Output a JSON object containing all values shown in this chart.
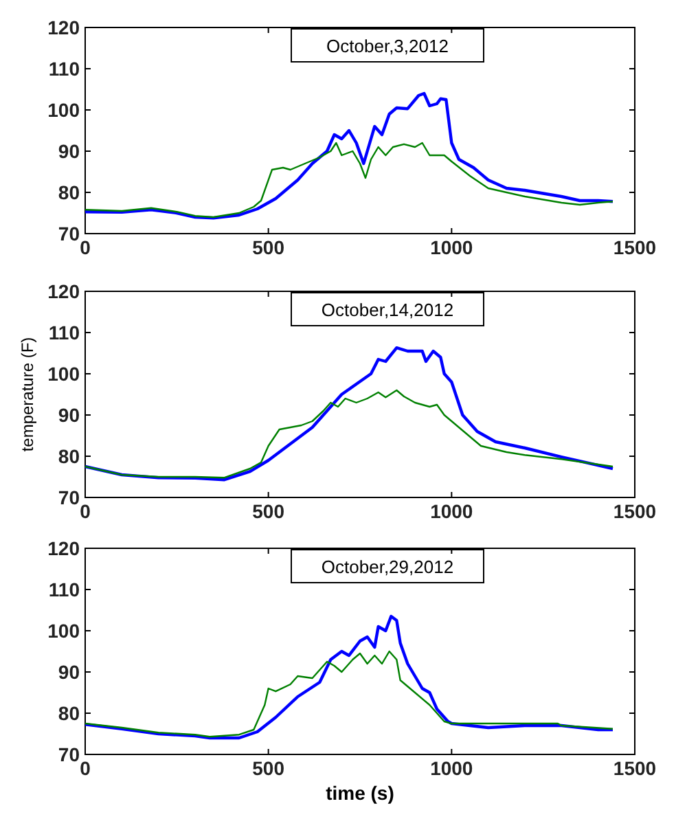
{
  "chart_data": [
    {
      "type": "line",
      "annotations": [
        "October,3,2012"
      ],
      "xlim": [
        0,
        1500
      ],
      "ylim": [
        70,
        120
      ],
      "xticks": [
        0,
        500,
        1000,
        1500
      ],
      "yticks": [
        70,
        80,
        90,
        100,
        110,
        120
      ],
      "series": [
        {
          "color": "#0000ff",
          "x": [
            0,
            100,
            180,
            250,
            300,
            350,
            420,
            470,
            520,
            580,
            620,
            660,
            680,
            700,
            720,
            740,
            760,
            780,
            790,
            810,
            830,
            850,
            880,
            910,
            925,
            940,
            960,
            970,
            985,
            1000,
            1020,
            1060,
            1100,
            1150,
            1200,
            1300,
            1350,
            1400,
            1440
          ],
          "values": [
            75.3,
            75.2,
            75.8,
            75,
            74,
            73.8,
            74.5,
            76,
            78.5,
            83,
            87,
            90,
            94,
            93,
            95,
            92,
            87,
            93,
            96,
            94,
            99,
            100.5,
            100.3,
            103.5,
            104,
            101,
            101.5,
            102.7,
            102.5,
            92,
            88,
            86,
            83,
            81,
            80.5,
            79,
            78,
            78,
            77.8
          ]
        },
        {
          "color": "#008000",
          "x": [
            0,
            100,
            180,
            250,
            300,
            350,
            420,
            460,
            480,
            510,
            540,
            560,
            600,
            640,
            670,
            685,
            700,
            730,
            750,
            765,
            780,
            800,
            820,
            840,
            870,
            900,
            920,
            940,
            980,
            1000,
            1050,
            1100,
            1200,
            1300,
            1350,
            1400,
            1440
          ],
          "values": [
            75.8,
            75.5,
            76.2,
            75.3,
            74.3,
            74,
            75,
            76.5,
            78,
            85.5,
            86,
            85.5,
            87,
            88.5,
            90,
            92,
            89,
            90,
            87,
            83.5,
            88,
            91,
            89,
            91,
            91.7,
            91,
            92,
            89,
            89,
            87.5,
            84,
            81,
            79,
            77.5,
            77,
            77.5,
            77.8
          ]
        }
      ]
    },
    {
      "type": "line",
      "ylabel": "temperature (F)",
      "annotations": [
        "October,14,2012"
      ],
      "xlim": [
        0,
        1500
      ],
      "ylim": [
        70,
        120
      ],
      "xticks": [
        0,
        500,
        1000,
        1500
      ],
      "yticks": [
        70,
        80,
        90,
        100,
        110,
        120
      ],
      "series": [
        {
          "color": "#0000ff",
          "x": [
            0,
            100,
            200,
            300,
            380,
            450,
            500,
            560,
            620,
            660,
            700,
            740,
            780,
            800,
            820,
            850,
            880,
            920,
            930,
            950,
            970,
            980,
            1000,
            1030,
            1070,
            1120,
            1200,
            1300,
            1350,
            1440
          ],
          "values": [
            77.5,
            75.5,
            74.8,
            74.7,
            74.3,
            76.3,
            79,
            83,
            87,
            91,
            95,
            97.5,
            100,
            103.5,
            103,
            106.3,
            105.5,
            105.5,
            103,
            105.5,
            104,
            100,
            98,
            90,
            86,
            83.5,
            82,
            79.8,
            78.8,
            77
          ]
        },
        {
          "color": "#008000",
          "x": [
            0,
            100,
            200,
            300,
            380,
            450,
            480,
            500,
            530,
            560,
            590,
            620,
            650,
            670,
            690,
            710,
            740,
            770,
            800,
            820,
            850,
            870,
            900,
            940,
            960,
            980,
            1020,
            1080,
            1150,
            1200,
            1300,
            1440
          ],
          "values": [
            77.5,
            75.5,
            75,
            75,
            74.8,
            77,
            78.5,
            82.5,
            86.5,
            87,
            87.5,
            88.5,
            91,
            93,
            92,
            94,
            93,
            94,
            95.5,
            94.3,
            96,
            94.5,
            93,
            92,
            92.5,
            90,
            87,
            82.5,
            81,
            80.3,
            79.3,
            77.5
          ]
        }
      ]
    },
    {
      "type": "line",
      "xlabel": "time (s)",
      "annotations": [
        "October,29,2012"
      ],
      "xlim": [
        0,
        1500
      ],
      "ylim": [
        70,
        120
      ],
      "xticks": [
        0,
        500,
        1000,
        1500
      ],
      "yticks": [
        70,
        80,
        90,
        100,
        110,
        120
      ],
      "series": [
        {
          "color": "#0000ff",
          "x": [
            0,
            100,
            200,
            300,
            340,
            420,
            470,
            520,
            580,
            640,
            670,
            700,
            720,
            750,
            770,
            790,
            800,
            820,
            835,
            850,
            860,
            880,
            920,
            940,
            960,
            990,
            1000,
            1050,
            1100,
            1200,
            1300,
            1400,
            1440
          ],
          "values": [
            77.3,
            76.2,
            75,
            74.5,
            74,
            74,
            75.5,
            79,
            84,
            87.5,
            93,
            95,
            94,
            97.5,
            98.5,
            96,
            101,
            100,
            103.5,
            102.5,
            97,
            92,
            86,
            85,
            81,
            78,
            77.5,
            77,
            76.5,
            77,
            77,
            76,
            76
          ]
        },
        {
          "color": "#008000",
          "x": [
            0,
            100,
            200,
            300,
            340,
            420,
            460,
            490,
            500,
            520,
            560,
            580,
            620,
            660,
            680,
            700,
            730,
            750,
            770,
            790,
            810,
            830,
            850,
            860,
            900,
            940,
            980,
            1000,
            1100,
            1200,
            1290,
            1300,
            1440
          ],
          "values": [
            77.5,
            76.5,
            75.3,
            74.8,
            74.3,
            74.8,
            76,
            82,
            86,
            85.3,
            87,
            89,
            88.5,
            92.5,
            91.5,
            90,
            93,
            94.5,
            92,
            94,
            92,
            95,
            93,
            88,
            85,
            82,
            78,
            77.5,
            77.5,
            77.5,
            77.5,
            77,
            76.2
          ]
        }
      ]
    }
  ]
}
